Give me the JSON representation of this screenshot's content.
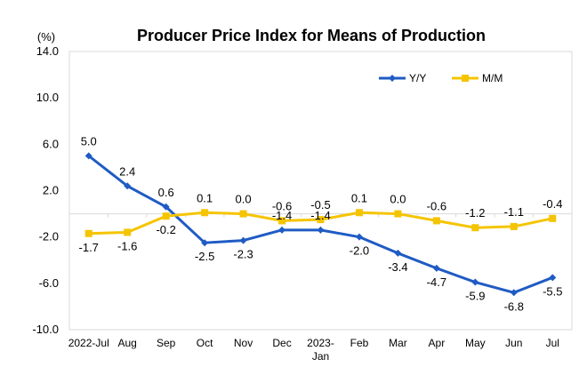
{
  "chart_data": {
    "type": "line",
    "title": "Producer Price Index for Means of Production",
    "ylabel": "(%)",
    "xlabel": "",
    "ylim": [
      -10.0,
      14.0
    ],
    "yticks": [
      "14.0",
      "10.0",
      "6.0",
      "2.0",
      "-2.0",
      "-6.0",
      "-10.0"
    ],
    "grid": false,
    "legend_position": "top-right",
    "categories": [
      "2022-Jul",
      "Aug",
      "Sep",
      "Oct",
      "Nov",
      "Dec",
      "2023-\nJan",
      "Feb",
      "Mar",
      "Apr",
      "May",
      "Jun",
      "Jul"
    ],
    "series": [
      {
        "name": "Y/Y",
        "color": "#1f5bc4",
        "marker": "diamond",
        "values": [
          5.0,
          2.4,
          0.6,
          -2.5,
          -2.3,
          -1.4,
          -1.4,
          -2.0,
          -3.4,
          -4.7,
          -5.9,
          -6.8,
          -5.5
        ],
        "labels": [
          "5.0",
          "2.4",
          "0.6",
          "-2.5",
          "-2.3",
          "-1.4",
          "-1.4",
          "-2.0",
          "-3.4",
          "-4.7",
          "-5.9",
          "-6.8",
          "-5.5"
        ]
      },
      {
        "name": "M/M",
        "color": "#f5c400",
        "marker": "square",
        "values": [
          -1.7,
          -1.6,
          -0.2,
          0.1,
          0.0,
          -0.6,
          -0.5,
          0.1,
          0.0,
          -0.6,
          -1.2,
          -1.1,
          -0.4
        ],
        "labels": [
          "-1.7",
          "-1.6",
          "-0.2",
          "0.1",
          "0.0",
          "-0.6",
          "-0.5",
          "0.1",
          "0.0",
          "-0.6",
          "-1.2",
          "-1.1",
          "-0.4"
        ]
      }
    ]
  }
}
